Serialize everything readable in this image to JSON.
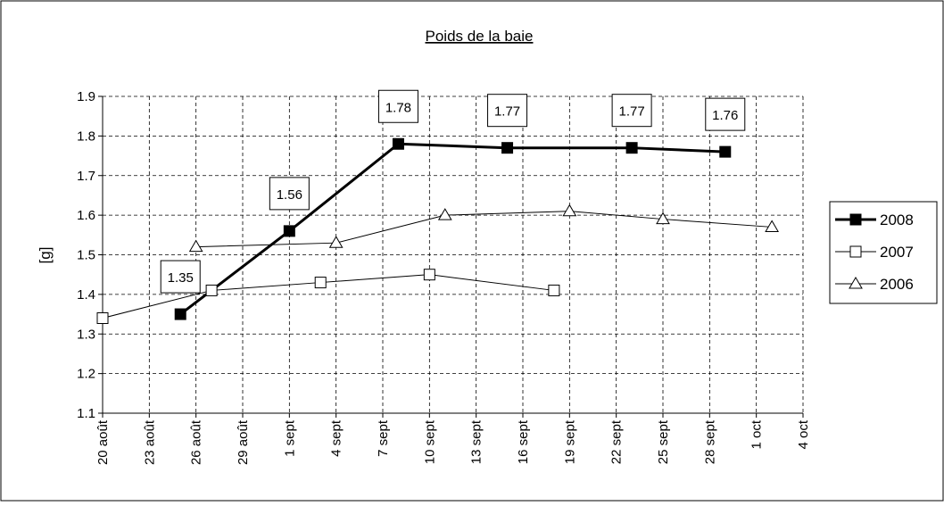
{
  "chart_data": {
    "type": "line",
    "title": "Poids de la baie",
    "y_label": "[g]",
    "xlim": [
      0,
      45
    ],
    "xticks": [
      {
        "value": 0,
        "label": "20 août"
      },
      {
        "value": 3,
        "label": "23 août"
      },
      {
        "value": 6,
        "label": "26 août"
      },
      {
        "value": 9,
        "label": "29 août"
      },
      {
        "value": 12,
        "label": "1 sept"
      },
      {
        "value": 15,
        "label": "4 sept"
      },
      {
        "value": 18,
        "label": "7 sept"
      },
      {
        "value": 21,
        "label": "10 sept"
      },
      {
        "value": 24,
        "label": "13 sept"
      },
      {
        "value": 27,
        "label": "16 sept"
      },
      {
        "value": 30,
        "label": "19 sept"
      },
      {
        "value": 33,
        "label": "22 sept"
      },
      {
        "value": 36,
        "label": "25 sept"
      },
      {
        "value": 39,
        "label": "28 sept"
      },
      {
        "value": 42,
        "label": "1 oct"
      },
      {
        "value": 45,
        "label": "4 oct"
      }
    ],
    "ylim": [
      1.1,
      1.9
    ],
    "yticks": [
      1.1,
      1.2,
      1.3,
      1.4,
      1.5,
      1.6,
      1.7,
      1.8,
      1.9
    ],
    "grid": true,
    "legend": "right",
    "series": [
      {
        "name": "2008",
        "color": "#000000",
        "marker": "square-filled",
        "line_width": 3,
        "data_labels": true,
        "x": [
          5,
          12,
          19,
          26,
          34,
          40
        ],
        "values": [
          1.35,
          1.56,
          1.78,
          1.77,
          1.77,
          1.76
        ]
      },
      {
        "name": "2007",
        "color": "#000000",
        "marker": "square-open",
        "line_width": 1,
        "x": [
          0,
          7,
          14,
          21,
          29
        ],
        "values": [
          1.34,
          1.41,
          1.43,
          1.45,
          1.41
        ]
      },
      {
        "name": "2006",
        "color": "#000000",
        "marker": "triangle-open",
        "line_width": 1,
        "x": [
          6,
          15,
          22,
          30,
          36,
          43
        ],
        "values": [
          1.52,
          1.53,
          1.6,
          1.61,
          1.59,
          1.57
        ]
      }
    ]
  }
}
